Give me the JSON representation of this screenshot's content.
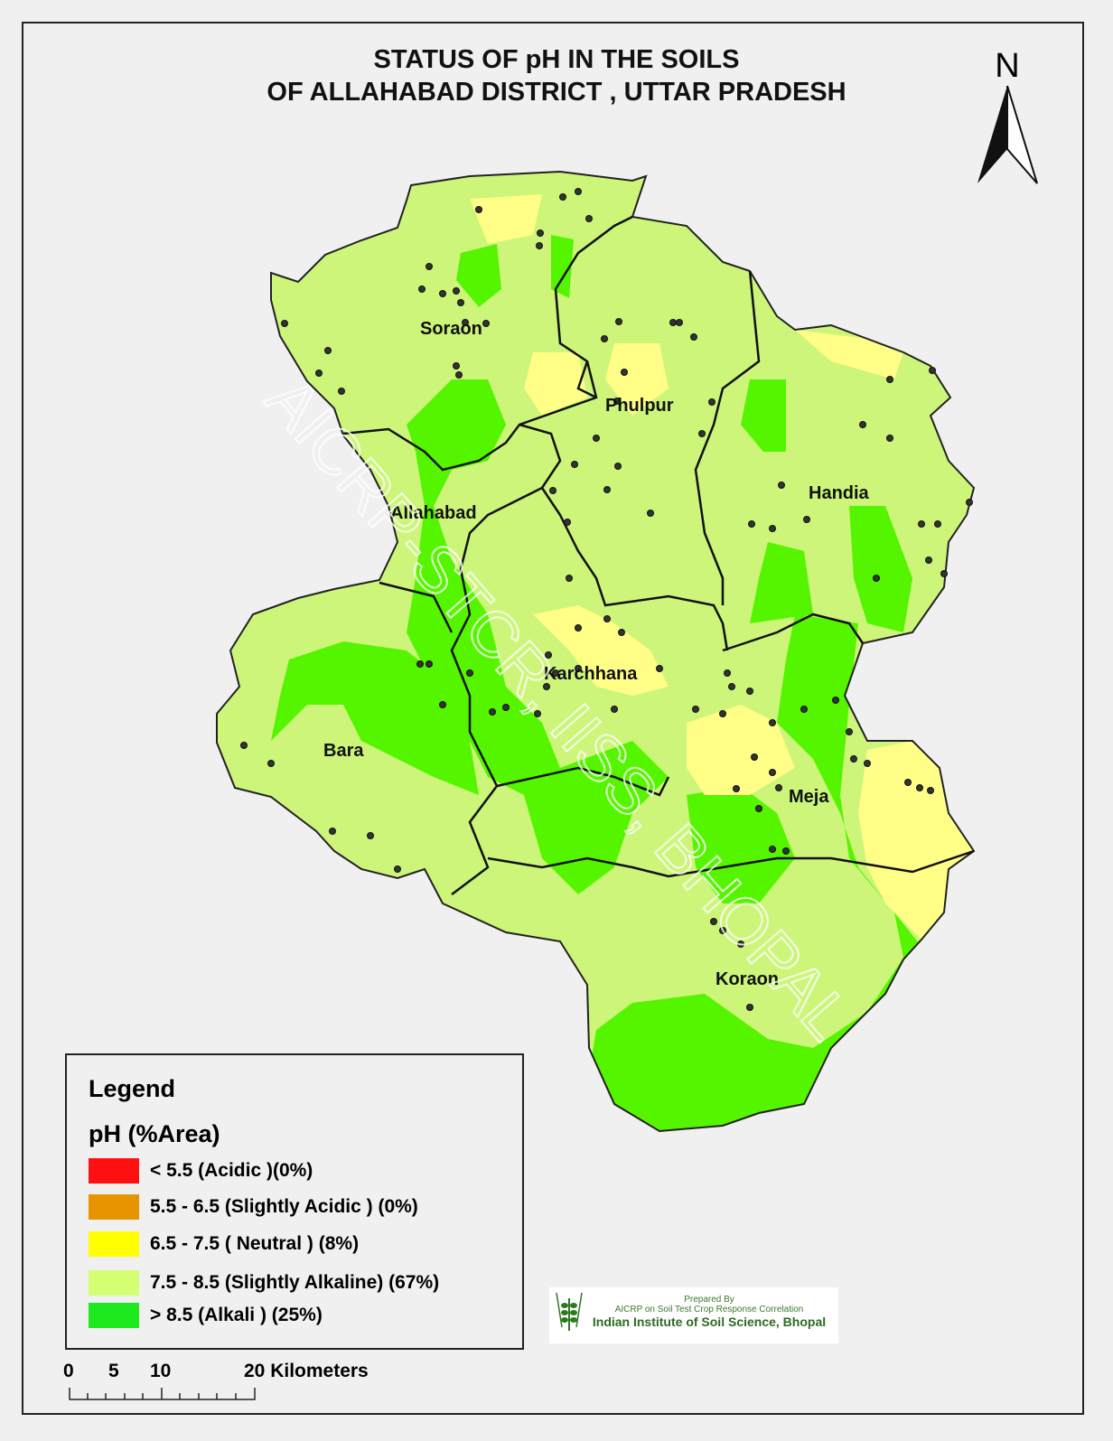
{
  "title": {
    "line1": "STATUS OF pH  IN THE SOILS",
    "line2": "OF ALLAHABAD DISTRICT , UTTAR PRADESH"
  },
  "north_arrow": {
    "label": "N"
  },
  "blocks": [
    "Soraon",
    "Phulpur",
    "Handia",
    "Allahabad",
    "Karchhana",
    "Bara",
    "Meja",
    "Koraon"
  ],
  "watermark": "AICRP-STCR, IISS, BHOPAL",
  "legend": {
    "heading": "Legend",
    "subheading": "pH  (%Area)",
    "items": [
      {
        "label": "< 5.5  (Acidic )(0%)",
        "color": "#ff1010",
        "percent": 0
      },
      {
        "label": "5.5  -  6.5   (Slightly Acidic ) (0%)",
        "color": "#e69500",
        "percent": 0
      },
      {
        "label": "6.5  - 7.5 ( Neutral ) (8%)",
        "color": "#ffff00",
        "percent": 8
      },
      {
        "label": "7.5 - 8.5  (Slightly Alkaline) (67%)",
        "color": "#d4ff73",
        "percent": 67
      },
      {
        "label": "> 8.5  (Alkali ) (25%)",
        "color": "#1ee81e",
        "percent": 25
      }
    ]
  },
  "scale_bar": {
    "ticks": [
      "0",
      "5",
      "10"
    ],
    "end_label": "20 Kilometers"
  },
  "credit": {
    "line1": "Prepared By",
    "line2": "AICRP on Soil Test Crop Response Correlation",
    "line3": "Indian Institute of Soil Science, Bhopal",
    "logo_text": "ICAR"
  },
  "map_colors": {
    "slightly_alkaline": "#ccf57a",
    "alkali": "#55f500",
    "neutral": "#ffff88",
    "sample_point": "#333333"
  }
}
